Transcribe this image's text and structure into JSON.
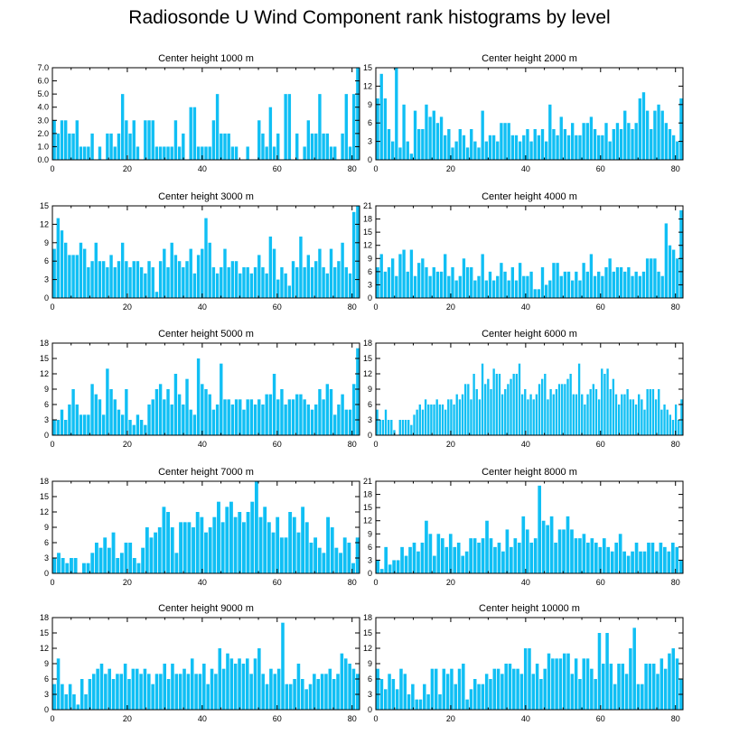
{
  "title": "Radiosonde U Wind Component rank histograms by level",
  "bar_color": "#10bff4",
  "chart_data": [
    {
      "type": "bar",
      "title": "Center height 1000 m",
      "xlim": [
        0,
        82
      ],
      "xticks": [
        0,
        20,
        40,
        60,
        80
      ],
      "ylim": [
        0,
        7
      ],
      "yticks": [
        "0.0",
        "1.0",
        "2.0",
        "3.0",
        "4.0",
        "5.0",
        "6.0",
        "7.0"
      ],
      "values": [
        3,
        2,
        3,
        3,
        2,
        2,
        3,
        1,
        1,
        1,
        2,
        0,
        1,
        0,
        2,
        2,
        1,
        2,
        5,
        3,
        2,
        3,
        1,
        0,
        3,
        3,
        3,
        1,
        1,
        1,
        1,
        1,
        3,
        1,
        2,
        0,
        4,
        4,
        1,
        1,
        1,
        1,
        3,
        5,
        2,
        2,
        2,
        1,
        1,
        0,
        0,
        1,
        0,
        0,
        3,
        2,
        1,
        4,
        1,
        2,
        0,
        5,
        5,
        0,
        2,
        0,
        1,
        3,
        2,
        2,
        5,
        2,
        2,
        1,
        1,
        0,
        2,
        5,
        1,
        5,
        7
      ]
    },
    {
      "type": "bar",
      "title": "Center height 2000 m",
      "xlim": [
        0,
        82
      ],
      "xticks": [
        0,
        20,
        40,
        60,
        80
      ],
      "ylim": [
        0,
        15
      ],
      "yticks": [
        "0",
        "3",
        "6",
        "9",
        "12",
        "15"
      ],
      "values": [
        10,
        14,
        10,
        5,
        3,
        15,
        2,
        9,
        3,
        1,
        8,
        5,
        5,
        9,
        7,
        8,
        6,
        7,
        4,
        5,
        2,
        3,
        5,
        4,
        2,
        5,
        3,
        2,
        8,
        3,
        4,
        4,
        3,
        6,
        6,
        6,
        4,
        4,
        3,
        4,
        5,
        3,
        5,
        4,
        5,
        3,
        9,
        5,
        4,
        7,
        5,
        4,
        6,
        4,
        4,
        6,
        6,
        7,
        5,
        4,
        4,
        6,
        3,
        5,
        6,
        5,
        8,
        6,
        5,
        6,
        10,
        11,
        8,
        5,
        8,
        9,
        8,
        6,
        5,
        4,
        3,
        10
      ]
    },
    {
      "type": "bar",
      "title": "Center height 3000 m",
      "xlim": [
        0,
        82
      ],
      "xticks": [
        0,
        20,
        40,
        60,
        80
      ],
      "ylim": [
        0,
        15
      ],
      "yticks": [
        "0",
        "3",
        "6",
        "9",
        "12",
        "15"
      ],
      "values": [
        8,
        13,
        11,
        9,
        7,
        7,
        7,
        9,
        8,
        5,
        6,
        9,
        6,
        6,
        5,
        7,
        5,
        6,
        9,
        6,
        5,
        6,
        6,
        5,
        4,
        6,
        5,
        1,
        6,
        8,
        5,
        9,
        7,
        6,
        5,
        6,
        8,
        4,
        7,
        8,
        13,
        9,
        5,
        4,
        5,
        8,
        5,
        6,
        6,
        4,
        5,
        5,
        4,
        5,
        7,
        5,
        4,
        10,
        8,
        3,
        5,
        4,
        2,
        6,
        5,
        10,
        5,
        7,
        5,
        6,
        8,
        5,
        4,
        8,
        5,
        6,
        9,
        5,
        4,
        14,
        15
      ]
    },
    {
      "type": "bar",
      "title": "Center height 4000 m",
      "xlim": [
        0,
        82
      ],
      "xticks": [
        0,
        20,
        40,
        60,
        80
      ],
      "ylim": [
        0,
        21
      ],
      "yticks": [
        "0",
        "3",
        "6",
        "9",
        "12",
        "15",
        "18",
        "21"
      ],
      "values": [
        7,
        10,
        6,
        7,
        9,
        5,
        10,
        11,
        6,
        11,
        5,
        8,
        9,
        7,
        5,
        7,
        6,
        6,
        10,
        5,
        7,
        4,
        5,
        9,
        7,
        7,
        4,
        5,
        10,
        4,
        6,
        4,
        5,
        8,
        6,
        4,
        7,
        4,
        8,
        5,
        5,
        6,
        2,
        2,
        7,
        3,
        4,
        8,
        8,
        5,
        6,
        6,
        4,
        6,
        4,
        8,
        6,
        10,
        5,
        6,
        5,
        7,
        9,
        6,
        7,
        7,
        6,
        7,
        5,
        6,
        5,
        6,
        9,
        9,
        9,
        6,
        5,
        17,
        12,
        11,
        9,
        20
      ]
    },
    {
      "type": "bar",
      "title": "Center height 5000 m",
      "xlim": [
        0,
        82
      ],
      "xticks": [
        0,
        20,
        40,
        60,
        80
      ],
      "ylim": [
        0,
        18
      ],
      "yticks": [
        "0",
        "3",
        "6",
        "9",
        "12",
        "15",
        "18"
      ],
      "values": [
        3,
        3,
        5,
        3,
        6,
        9,
        6,
        4,
        4,
        4,
        10,
        8,
        7,
        4,
        13,
        9,
        7,
        5,
        4,
        9,
        3,
        2,
        4,
        3,
        2,
        6,
        7,
        9,
        10,
        7,
        9,
        6,
        12,
        8,
        6,
        11,
        5,
        4,
        15,
        10,
        9,
        8,
        5,
        6,
        14,
        7,
        7,
        6,
        7,
        7,
        5,
        7,
        7,
        6,
        7,
        6,
        8,
        8,
        12,
        7,
        9,
        6,
        7,
        7,
        8,
        8,
        7,
        6,
        5,
        6,
        9,
        7,
        10,
        9,
        4,
        6,
        8,
        5,
        5,
        10,
        17
      ]
    },
    {
      "type": "bar",
      "title": "Center height 6000 m",
      "xlim": [
        0,
        82
      ],
      "xticks": [
        0,
        20,
        40,
        60,
        80
      ],
      "ylim": [
        0,
        18
      ],
      "yticks": [
        "0",
        "3",
        "6",
        "9",
        "12",
        "15",
        "18"
      ],
      "values": [
        5,
        3,
        3,
        5,
        3,
        3,
        1,
        0,
        3,
        3,
        3,
        3,
        2,
        4,
        5,
        6,
        5,
        7,
        6,
        6,
        6,
        7,
        6,
        6,
        5,
        7,
        7,
        6,
        8,
        7,
        8,
        10,
        10,
        7,
        12,
        9,
        7,
        14,
        10,
        11,
        9,
        13,
        12,
        12,
        8,
        9,
        10,
        11,
        12,
        12,
        14,
        8,
        9,
        7,
        8,
        7,
        8,
        10,
        11,
        12,
        7,
        9,
        8,
        9,
        10,
        10,
        10,
        11,
        12,
        8,
        8,
        14,
        8,
        6,
        8,
        9,
        10,
        9,
        7,
        13,
        12,
        13,
        9,
        11,
        8,
        6,
        8,
        8,
        9,
        7,
        7,
        6,
        8,
        7,
        5,
        9,
        9,
        9,
        7,
        9,
        5,
        6,
        5,
        4,
        3,
        6,
        3,
        7
      ]
    },
    {
      "type": "bar",
      "title": "Center height 7000 m",
      "xlim": [
        0,
        82
      ],
      "xticks": [
        0,
        20,
        40,
        60,
        80
      ],
      "ylim": [
        0,
        18
      ],
      "yticks": [
        "0",
        "3",
        "6",
        "9",
        "12",
        "15",
        "18"
      ],
      "values": [
        3,
        4,
        3,
        2,
        3,
        3,
        0,
        2,
        2,
        4,
        6,
        5,
        7,
        5,
        8,
        3,
        4,
        6,
        6,
        3,
        2,
        5,
        9,
        7,
        8,
        9,
        13,
        12,
        9,
        4,
        10,
        10,
        10,
        9,
        12,
        11,
        8,
        9,
        11,
        14,
        10,
        13,
        14,
        11,
        12,
        10,
        12,
        14,
        18,
        11,
        13,
        10,
        8,
        11,
        7,
        7,
        12,
        11,
        8,
        13,
        10,
        6,
        7,
        5,
        4,
        11,
        9,
        5,
        4,
        7,
        6,
        2,
        7
      ]
    },
    {
      "type": "bar",
      "title": "Center height 8000 m",
      "xlim": [
        0,
        82
      ],
      "xticks": [
        0,
        20,
        40,
        60,
        80
      ],
      "ylim": [
        0,
        21
      ],
      "yticks": [
        "0",
        "3",
        "6",
        "9",
        "12",
        "15",
        "18",
        "21"
      ],
      "values": [
        3,
        1,
        6,
        2,
        3,
        3,
        6,
        4,
        6,
        7,
        5,
        7,
        12,
        9,
        4,
        9,
        8,
        6,
        9,
        6,
        7,
        4,
        5,
        8,
        8,
        7,
        8,
        12,
        8,
        6,
        7,
        5,
        10,
        6,
        8,
        7,
        13,
        10,
        7,
        8,
        20,
        12,
        11,
        13,
        7,
        10,
        10,
        13,
        10,
        8,
        8,
        9,
        7,
        8,
        7,
        6,
        8,
        6,
        5,
        7,
        9,
        5,
        4,
        5,
        7,
        5,
        5,
        7,
        7,
        5,
        7,
        6,
        5,
        7,
        6,
        3
      ]
    },
    {
      "type": "bar",
      "title": "Center height 9000 m",
      "xlim": [
        0,
        82
      ],
      "xticks": [
        0,
        20,
        40,
        60,
        80
      ],
      "ylim": [
        0,
        18
      ],
      "yticks": [
        "0",
        "3",
        "6",
        "9",
        "12",
        "15",
        "18"
      ],
      "values": [
        5,
        10,
        5,
        3,
        5,
        3,
        1,
        6,
        3,
        6,
        7,
        8,
        9,
        7,
        8,
        6,
        7,
        7,
        9,
        6,
        8,
        8,
        7,
        8,
        7,
        5,
        7,
        7,
        9,
        6,
        9,
        7,
        7,
        8,
        7,
        10,
        7,
        7,
        9,
        5,
        8,
        7,
        12,
        8,
        11,
        10,
        9,
        10,
        9,
        10,
        7,
        10,
        12,
        7,
        5,
        8,
        7,
        8,
        17,
        5,
        5,
        6,
        9,
        6,
        4,
        5,
        7,
        6,
        7,
        7,
        8,
        6,
        7,
        11,
        10,
        9,
        8,
        7
      ]
    },
    {
      "type": "bar",
      "title": "Center height 10000 m",
      "xlim": [
        0,
        82
      ],
      "xticks": [
        0,
        20,
        40,
        60,
        80
      ],
      "ylim": [
        0,
        18
      ],
      "yticks": [
        "0",
        "3",
        "6",
        "9",
        "12",
        "15",
        "18"
      ],
      "values": [
        8,
        6,
        4,
        7,
        6,
        4,
        8,
        7,
        3,
        5,
        2,
        2,
        5,
        3,
        8,
        8,
        3,
        8,
        7,
        8,
        5,
        8,
        9,
        2,
        4,
        6,
        5,
        5,
        7,
        6,
        8,
        8,
        7,
        9,
        9,
        8,
        8,
        7,
        12,
        12,
        7,
        9,
        6,
        8,
        11,
        10,
        10,
        10,
        11,
        11,
        7,
        10,
        6,
        10,
        10,
        8,
        6,
        15,
        9,
        15,
        9,
        5,
        9,
        9,
        7,
        12,
        16,
        5,
        5,
        9,
        9,
        9,
        7,
        10,
        8,
        11,
        12,
        10,
        6
      ]
    }
  ]
}
